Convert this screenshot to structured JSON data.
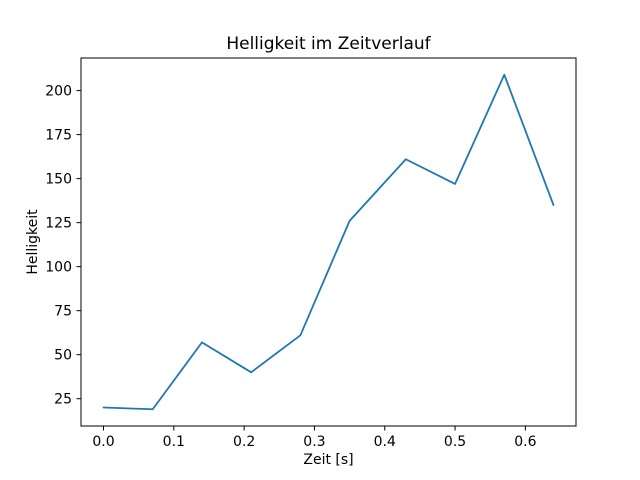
{
  "window": {
    "background": "#ffffff"
  },
  "chart_data": {
    "type": "line",
    "title": "Helligkeit im Zeitverlauf",
    "xlabel": "Zeit [s]",
    "ylabel": "Helligkeit",
    "x": [
      0.0,
      0.07,
      0.14,
      0.21,
      0.28,
      0.35,
      0.43,
      0.5,
      0.57,
      0.64
    ],
    "y": [
      20,
      19,
      57,
      40,
      61,
      126,
      161,
      147,
      209,
      135
    ],
    "x_ticks": [
      0.0,
      0.1,
      0.2,
      0.3,
      0.4,
      0.5,
      0.6
    ],
    "x_tick_labels": [
      "0.0",
      "0.1",
      "0.2",
      "0.3",
      "0.4",
      "0.5",
      "0.6"
    ],
    "y_ticks": [
      25,
      50,
      75,
      100,
      125,
      150,
      175,
      200
    ],
    "y_tick_labels": [
      "25",
      "50",
      "75",
      "100",
      "125",
      "150",
      "175",
      "200"
    ],
    "xlim": [
      -0.032,
      0.672
    ],
    "ylim": [
      9.5,
      218.5
    ],
    "line_color": "#1f77b4",
    "line_width": 1.8,
    "axes_color": "#000000",
    "grid": false,
    "legend_position": "none"
  }
}
